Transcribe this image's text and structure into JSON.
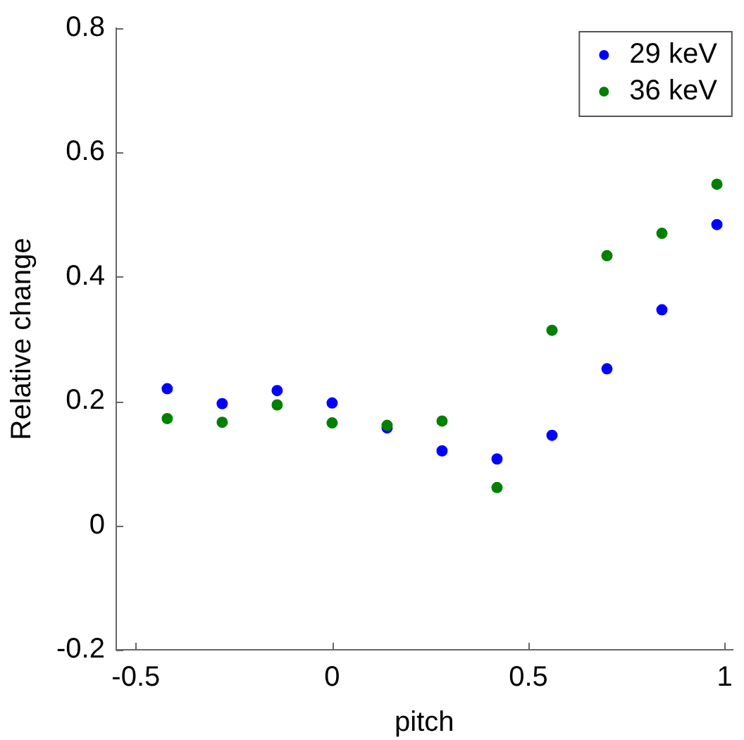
{
  "chart_data": {
    "type": "scatter",
    "xlabel": "pitch",
    "ylabel": "Relative change",
    "x": [
      -0.42,
      -0.28,
      -0.14,
      0,
      0.14,
      0.28,
      0.42,
      0.56,
      0.7,
      0.84,
      0.98
    ],
    "series": [
      {
        "name": "29 keV",
        "color": "#0000ff",
        "values": [
          0.22,
          0.196,
          0.217,
          0.197,
          0.157,
          0.12,
          0.107,
          0.145,
          0.252,
          0.347,
          0.484
        ]
      },
      {
        "name": "36 keV",
        "color": "#008000",
        "values": [
          0.172,
          0.166,
          0.194,
          0.165,
          0.161,
          0.168,
          0.061,
          0.314,
          0.434,
          0.47,
          0.549
        ]
      }
    ],
    "xlim": [
      -0.55,
      1.02
    ],
    "ylim": [
      -0.2,
      0.8
    ],
    "xticks": [
      -0.5,
      0,
      0.5,
      1
    ],
    "yticks": [
      -0.2,
      0,
      0.2,
      0.4,
      0.6,
      0.8
    ],
    "grid": false,
    "legend": "top right",
    "marker": "circle"
  }
}
